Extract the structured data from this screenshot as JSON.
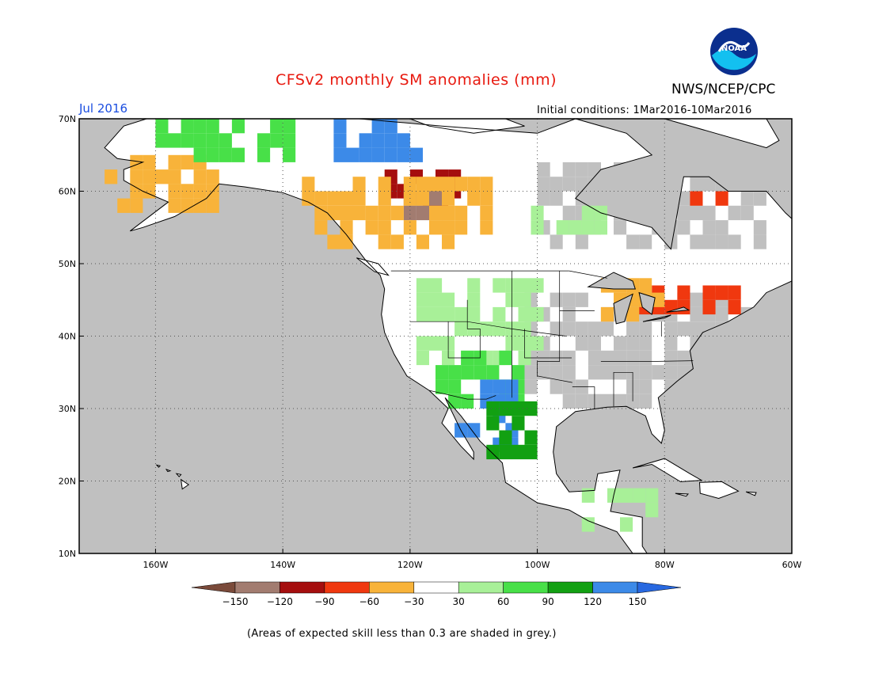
{
  "title": "CFSv2 monthly SM anomalies (mm)",
  "agency": "NWS/NCEP/CPC",
  "logo_text": "NOAA",
  "month": "Jul 2016",
  "initial_conditions": "Initial conditions: 1Mar2016-10Mar2016",
  "footnote": "(Areas of expected skill less than 0.3 are shaded in grey.)",
  "map": {
    "projection": "lat-lon",
    "lon_range": [
      -172,
      -60
    ],
    "lat_range": [
      10,
      70
    ],
    "lat_ticks": [
      {
        "value": 70,
        "label": "70N"
      },
      {
        "value": 60,
        "label": "60N"
      },
      {
        "value": 50,
        "label": "50N"
      },
      {
        "value": 40,
        "label": "40N"
      },
      {
        "value": 30,
        "label": "30N"
      },
      {
        "value": 20,
        "label": "20N"
      },
      {
        "value": 10,
        "label": "10N"
      }
    ],
    "lon_ticks": [
      {
        "value": -160,
        "label": "160W"
      },
      {
        "value": -140,
        "label": "140W"
      },
      {
        "value": -120,
        "label": "120W"
      },
      {
        "value": -100,
        "label": "100W"
      },
      {
        "value": -80,
        "label": "80W"
      },
      {
        "value": -60,
        "label": "60W"
      }
    ],
    "grid": "dotted",
    "colors": {
      "ocean": "#c0c0c0",
      "grey_skill": "#c0c0c0",
      "coast": "#000000"
    }
  },
  "colorbar": {
    "labels": [
      "-150",
      "-120",
      "-90",
      "-60",
      "-30",
      "30",
      "60",
      "90",
      "120",
      "150"
    ],
    "bins": [
      {
        "color": "#7a4a3a"
      },
      {
        "color": "#a27c70"
      },
      {
        "color": "#a50e0e"
      },
      {
        "color": "#f0380f"
      },
      {
        "color": "#f8b33a"
      },
      {
        "color": "#ffffff"
      },
      {
        "color": "#a8f098"
      },
      {
        "color": "#48e048"
      },
      {
        "color": "#12a012"
      },
      {
        "color": "#3c8ae8"
      },
      {
        "color": "#2868e0"
      }
    ]
  },
  "anomaly_regions": [
    {
      "category": "greyed",
      "color": "#c0c0c0",
      "lon": [
        -102,
        -60
      ],
      "lat": [
        30,
        45
      ]
    },
    {
      "category": "greyed",
      "color": "#c0c0c0",
      "lon": [
        -100,
        -62
      ],
      "lat": [
        52,
        64
      ]
    },
    {
      "category": "30 to 60",
      "color": "#a8f098",
      "lon": [
        -119,
        -100
      ],
      "lat": [
        36,
        48
      ]
    },
    {
      "category": "60 to 90",
      "color": "#48e048",
      "lon": [
        -116,
        -102
      ],
      "lat": [
        30,
        37
      ]
    },
    {
      "category": "120 to 150",
      "color": "#3c8ae8",
      "lon": [
        -113,
        -104
      ],
      "lat": [
        24,
        34
      ]
    },
    {
      "category": "90 to 120",
      "color": "#12a012",
      "lon": [
        -108,
        -100
      ],
      "lat": [
        23,
        30
      ]
    },
    {
      "category": "-90 to -120",
      "color": "#a50e0e",
      "lon": [
        -124,
        -112
      ],
      "lat": [
        57,
        63
      ]
    },
    {
      "category": "-120 to -150",
      "color": "#a27c70",
      "lon": [
        -121,
        -115
      ],
      "lat": [
        56,
        59
      ]
    },
    {
      "category": "-30 to -60",
      "color": "#f8b33a",
      "lon": [
        -137,
        -108
      ],
      "lat": [
        52,
        62
      ]
    },
    {
      "category": "-60 to -90",
      "color": "#f0380f",
      "lon": [
        -84,
        -68
      ],
      "lat": [
        43,
        47
      ]
    },
    {
      "category": "-30 to -60",
      "color": "#f8b33a",
      "lon": [
        -90,
        -80
      ],
      "lat": [
        42,
        47
      ]
    },
    {
      "category": "-60 to -90",
      "color": "#f0380f",
      "lon": [
        -76,
        -68
      ],
      "lat": [
        58,
        61
      ]
    },
    {
      "category": "-30 to -60",
      "color": "#f8b33a",
      "lon": [
        -168,
        -150
      ],
      "lat": [
        57,
        64
      ]
    },
    {
      "category": "60 to 90",
      "color": "#48e048",
      "lon": [
        -160,
        -136
      ],
      "lat": [
        64,
        69
      ]
    },
    {
      "category": "120 to 150",
      "color": "#3c8ae8",
      "lon": [
        -132,
        -118
      ],
      "lat": [
        64,
        70
      ]
    },
    {
      "category": "30 to 60",
      "color": "#a8f098",
      "lon": [
        -101,
        -90
      ],
      "lat": [
        54,
        58
      ]
    },
    {
      "category": "30 to 60",
      "color": "#a8f098",
      "lon": [
        -93,
        -82
      ],
      "lat": [
        13,
        19
      ]
    }
  ]
}
